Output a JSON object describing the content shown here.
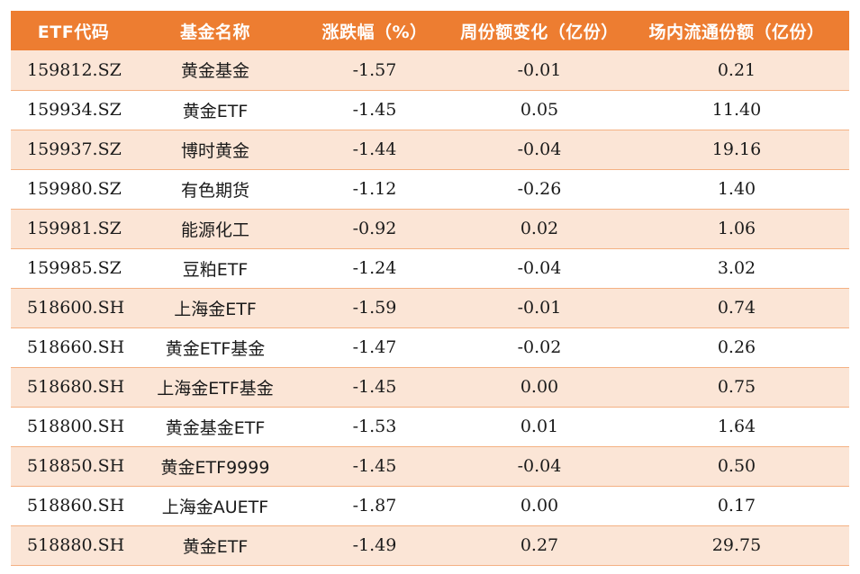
{
  "table": {
    "headers": [
      "ETF代码",
      "基金名称",
      "涨跌幅（%）",
      "周份额变化（亿份）",
      "场内流通份额（亿份）"
    ],
    "rows": [
      [
        "159812.SZ",
        "黄金基金",
        "-1.57",
        "-0.01",
        "0.21"
      ],
      [
        "159934.SZ",
        "黄金ETF",
        "-1.45",
        "0.05",
        "11.40"
      ],
      [
        "159937.SZ",
        "博时黄金",
        "-1.44",
        "-0.04",
        "19.16"
      ],
      [
        "159980.SZ",
        "有色期货",
        "-1.12",
        "-0.26",
        "1.40"
      ],
      [
        "159981.SZ",
        "能源化工",
        "-0.92",
        "0.02",
        "1.06"
      ],
      [
        "159985.SZ",
        "豆粕ETF",
        "-1.24",
        "-0.04",
        "3.02"
      ],
      [
        "518600.SH",
        "上海金ETF",
        "-1.59",
        "-0.01",
        "0.74"
      ],
      [
        "518660.SH",
        "黄金ETF基金",
        "-1.47",
        "-0.02",
        "0.26"
      ],
      [
        "518680.SH",
        "上海金ETF基金",
        "-1.45",
        "0.00",
        "0.75"
      ],
      [
        "518800.SH",
        "黄金基金ETF",
        "-1.53",
        "0.01",
        "1.64"
      ],
      [
        "518850.SH",
        "黄金ETF9999",
        "-1.45",
        "-0.04",
        "0.50"
      ],
      [
        "518860.SH",
        "上海金AUETF",
        "-1.87",
        "0.00",
        "0.17"
      ],
      [
        "518880.SH",
        "黄金ETF",
        "-1.49",
        "0.27",
        "29.75"
      ]
    ]
  },
  "colors": {
    "header_bg": "#ed7d31",
    "header_text": "#ffffff",
    "stripe_row": "#fbe5d6",
    "plain_row": "#ffffff",
    "row_border": "#f4b183"
  }
}
